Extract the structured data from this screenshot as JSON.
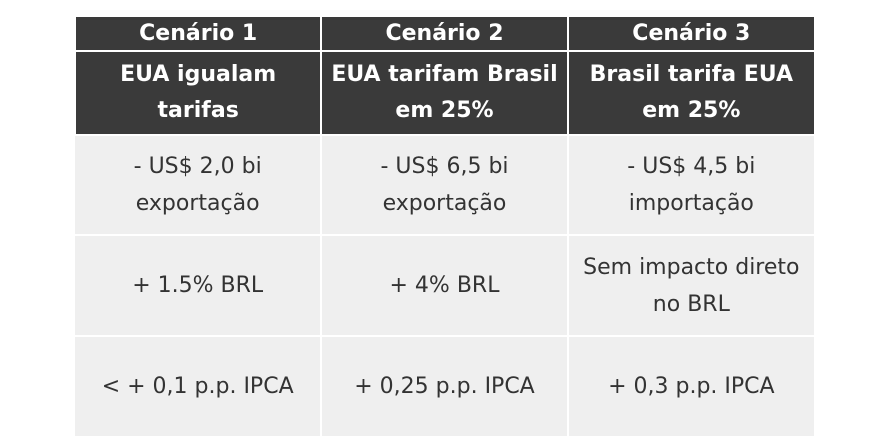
{
  "table": {
    "headers": [
      {
        "scenario": "Cenário 1",
        "description": "EUA igualam\ntarifas"
      },
      {
        "scenario": "Cenário 2",
        "description": "EUA tarifam Brasil\nem 25%"
      },
      {
        "scenario": "Cenário 3",
        "description": "Brasil tarifa EUA\nem 25%"
      }
    ],
    "rows": [
      [
        "- US$ 2,0 bi\nexportação",
        "- US$ 6,5 bi\nexportação",
        "- US$ 4,5 bi\nimportação"
      ],
      [
        "+ 1.5% BRL",
        "+ 4% BRL",
        "Sem impacto direto\nno BRL"
      ],
      [
        "< + 0,1 p.p. IPCA",
        "+ 0,25 p.p. IPCA",
        "+ 0,3 p.p. IPCA"
      ]
    ]
  },
  "colors": {
    "header_background": "#3a3a3a",
    "header_text": "#ffffff",
    "cell_background": "#efefef",
    "cell_text": "#333333"
  }
}
